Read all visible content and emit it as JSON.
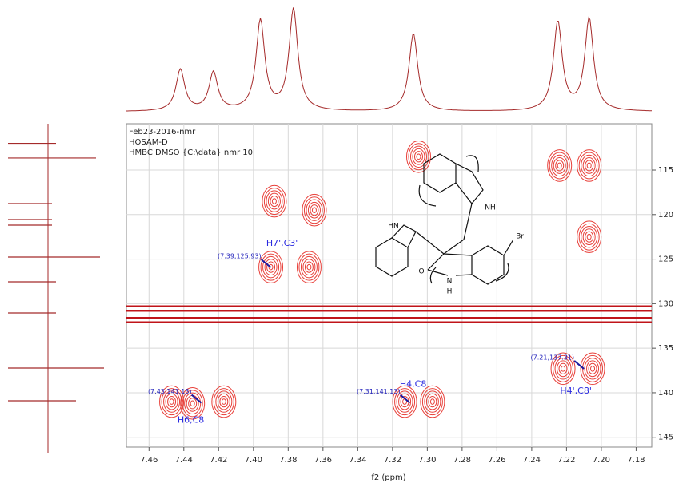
{
  "chart_data": {
    "type": "contour",
    "header": [
      "Feb23-2016-nmr",
      "HOSAM-D",
      "HMBC DMSO {C:\\data} nmr 10"
    ],
    "x_label": "f2 (ppm)",
    "xlim": [
      7.473,
      7.171
    ],
    "ylim": [
      109.8,
      146.1
    ],
    "xticks": [
      7.46,
      7.44,
      7.42,
      {
        "value": 7.4,
        "label": "7.40"
      },
      7.38,
      7.36,
      7.34,
      7.32,
      {
        "value": 7.3,
        "label": "7.30"
      },
      7.28,
      7.26,
      7.24,
      7.22,
      {
        "value": 7.2,
        "label": "7.20"
      },
      7.18
    ],
    "yticks": [
      115,
      120,
      125,
      130,
      135,
      140,
      145
    ],
    "grid": true,
    "color": "#e8403a",
    "peaks": {
      "x": [
        7.39,
        7.368,
        7.365,
        7.388,
        7.305,
        7.224,
        7.207,
        7.207,
        7.447,
        7.435,
        7.417,
        7.313,
        7.297,
        7.222,
        7.205
      ],
      "y": [
        125.9,
        125.9,
        119.5,
        118.5,
        113.5,
        114.5,
        114.5,
        122.5,
        141,
        141.2,
        141,
        141,
        141,
        137.3,
        137.3
      ]
    },
    "bands": {
      "color": "#c0141a",
      "y": [
        130.3,
        130.8,
        131.6,
        132.1
      ]
    },
    "annotations": [
      {
        "coord": "(7.39,125.93)",
        "label": "H7',C3'",
        "x": 7.39,
        "y": 125.93
      },
      {
        "coord": "(7.43,141.13)",
        "label": "H6,C8",
        "x": 7.43,
        "y": 141.13
      },
      {
        "coord": "(7.31,141.13)",
        "label": "H4,C8",
        "x": 7.31,
        "y": 141.13
      },
      {
        "coord": "(7.21,137.31)",
        "label": "H4',C8'",
        "x": 7.21,
        "y": 137.31
      }
    ],
    "f2_projection": {
      "color": "#a52a2a",
      "x": [
        7.442,
        7.423,
        7.396,
        7.377,
        7.308,
        7.225,
        7.207
      ],
      "values": [
        40,
        37,
        87,
        98,
        75,
        86,
        89
      ]
    },
    "f1_projection": {
      "color": "#a52a2a",
      "y": [
        112.0,
        113.65,
        118.76,
        120.55,
        121.18,
        124.77,
        127.55,
        131.04,
        137.23,
        140.9
      ],
      "values": [
        10,
        60,
        5,
        5,
        5,
        65,
        10,
        10,
        70,
        35
      ]
    },
    "structure": {
      "labels": [
        "HN",
        "NH",
        "Br",
        "O",
        "N",
        "H"
      ]
    }
  }
}
